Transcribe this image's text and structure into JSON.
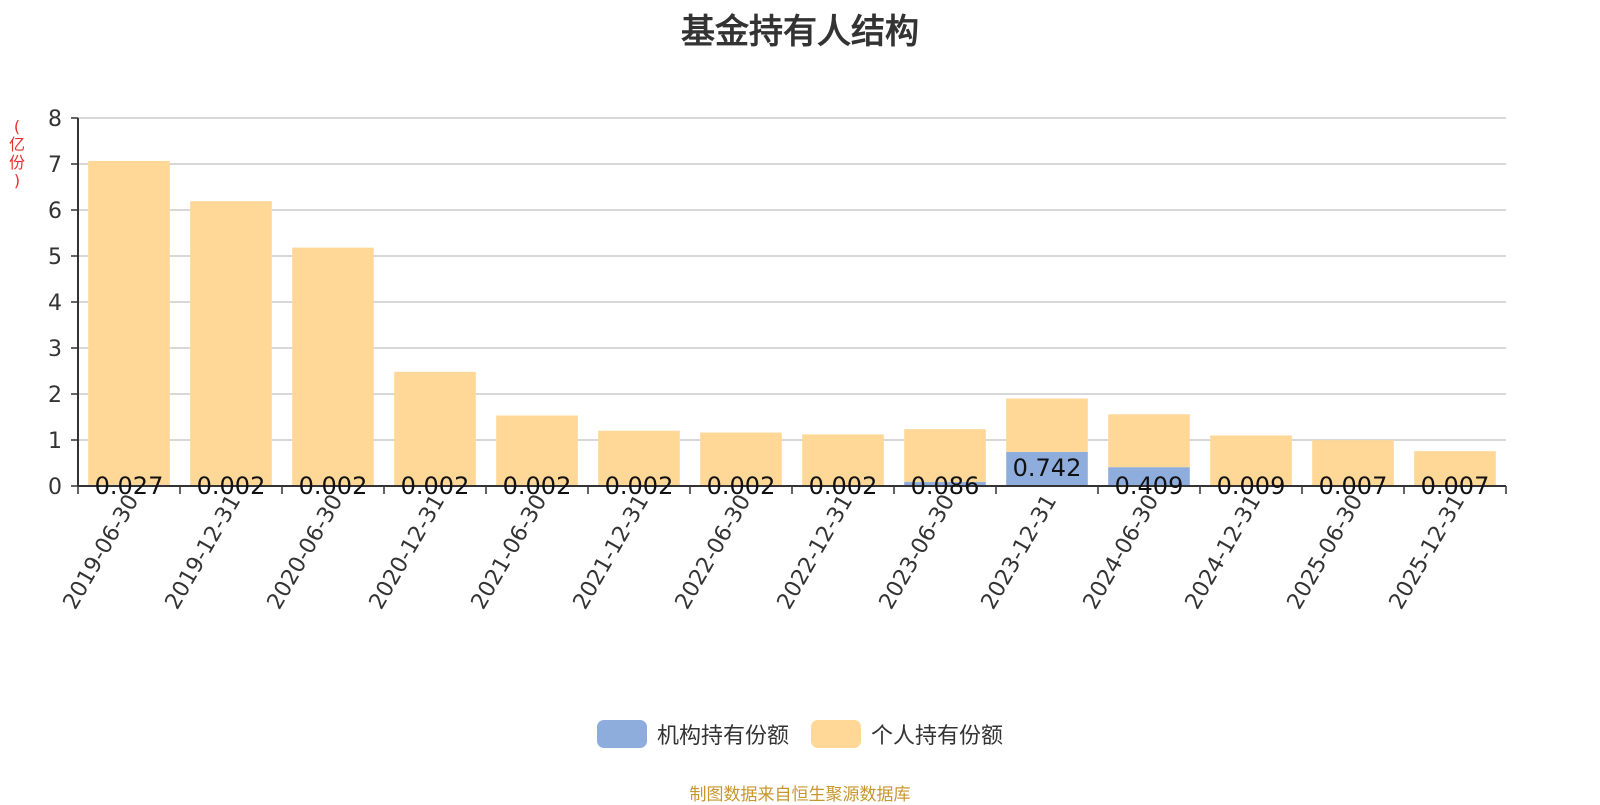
{
  "chart_data": {
    "type": "bar",
    "stacked": true,
    "title": "基金持有人结构",
    "ylabel": "(亿份)",
    "ylim": [
      0,
      8
    ],
    "yticks": [
      0,
      1,
      2,
      3,
      4,
      5,
      6,
      7,
      8
    ],
    "grid": true,
    "legend_position": "bottom",
    "categories": [
      "2019-06-30",
      "2019-12-31",
      "2020-06-30",
      "2020-12-31",
      "2021-06-30",
      "2021-12-31",
      "2022-06-30",
      "2022-12-31",
      "2023-06-30",
      "2023-12-31",
      "2024-06-30",
      "2024-12-31",
      "2025-06-30",
      "2025-12-31"
    ],
    "series": [
      {
        "name": "机构持有份额",
        "color": "#8EADDD",
        "values": [
          0.027,
          0.002,
          0.002,
          0.002,
          0.002,
          0.002,
          0.002,
          0.002,
          0.086,
          0.742,
          0.409,
          0.009,
          0.007,
          0.007
        ],
        "labels": [
          "0.027",
          "0.002",
          "0.002",
          "0.002",
          "0.002",
          "0.002",
          "0.002",
          "0.002",
          "0.086",
          "0.742",
          "0.409",
          "0.009",
          "0.007",
          "0.007"
        ]
      },
      {
        "name": "个人持有份额",
        "color": "#FFD898",
        "values": [
          7.04,
          6.19,
          5.18,
          2.48,
          1.53,
          1.2,
          1.16,
          1.12,
          1.15,
          1.16,
          1.15,
          1.09,
          0.99,
          0.75
        ]
      }
    ]
  },
  "source_note": "制图数据来自恒生聚源数据库",
  "colors": {
    "unit_label": "#E8302E",
    "source_note": "#C8962E",
    "axis": "#333333",
    "grid": "#CCCCCC"
  }
}
